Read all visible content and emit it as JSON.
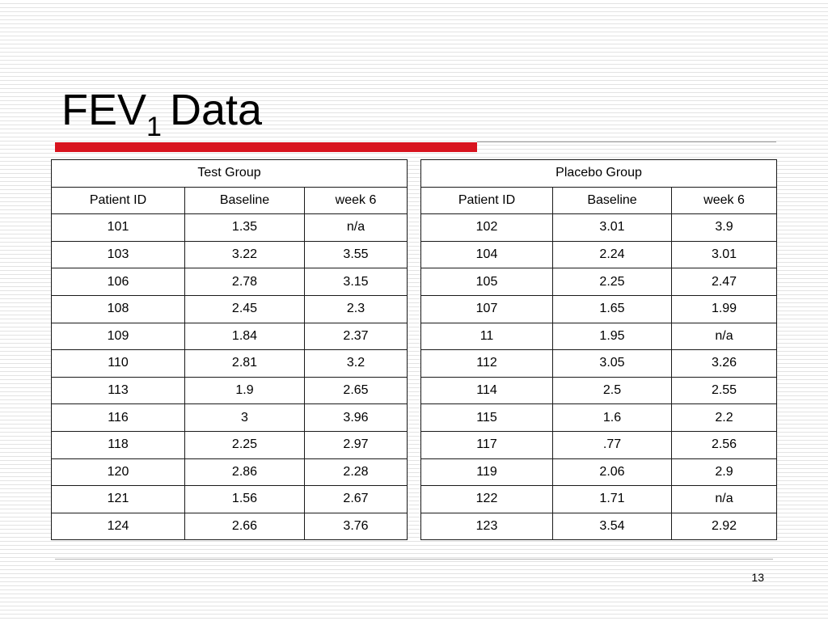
{
  "slide": {
    "title_main": "FEV",
    "title_subscript": "1",
    "title_tail": "Data",
    "number": "13"
  },
  "colors": {
    "accent_bar": "#d8131e",
    "table_border": "#1a1a1a"
  },
  "tables": [
    {
      "group": "Test Group",
      "headers": [
        "Patient ID",
        "Baseline",
        "week 6"
      ],
      "rows": [
        [
          "101",
          "1.35",
          "n/a"
        ],
        [
          "103",
          "3.22",
          "3.55"
        ],
        [
          "106",
          "2.78",
          "3.15"
        ],
        [
          "108",
          "2.45",
          "2.3"
        ],
        [
          "109",
          "1.84",
          "2.37"
        ],
        [
          "110",
          "2.81",
          "3.2"
        ],
        [
          "113",
          "1.9",
          "2.65"
        ],
        [
          "116",
          "3",
          "3.96"
        ],
        [
          "118",
          "2.25",
          "2.97"
        ],
        [
          "120",
          "2.86",
          "2.28"
        ],
        [
          "121",
          "1.56",
          "2.67"
        ],
        [
          "124",
          "2.66",
          "3.76"
        ]
      ]
    },
    {
      "group": "Placebo Group",
      "headers": [
        "Patient ID",
        "Baseline",
        "week 6"
      ],
      "rows": [
        [
          "102",
          "3.01",
          "3.9"
        ],
        [
          "104",
          "2.24",
          "3.01"
        ],
        [
          "105",
          "2.25",
          "2.47"
        ],
        [
          "107",
          "1.65",
          "1.99"
        ],
        [
          "11",
          "1.95",
          "n/a"
        ],
        [
          "112",
          "3.05",
          "3.26"
        ],
        [
          "114",
          "2.5",
          "2.55"
        ],
        [
          "115",
          "1.6",
          "2.2"
        ],
        [
          "117",
          ".77",
          "2.56"
        ],
        [
          "119",
          "2.06",
          "2.9"
        ],
        [
          "122",
          "1.71",
          "n/a"
        ],
        [
          "123",
          "3.54",
          "2.92"
        ]
      ]
    }
  ]
}
